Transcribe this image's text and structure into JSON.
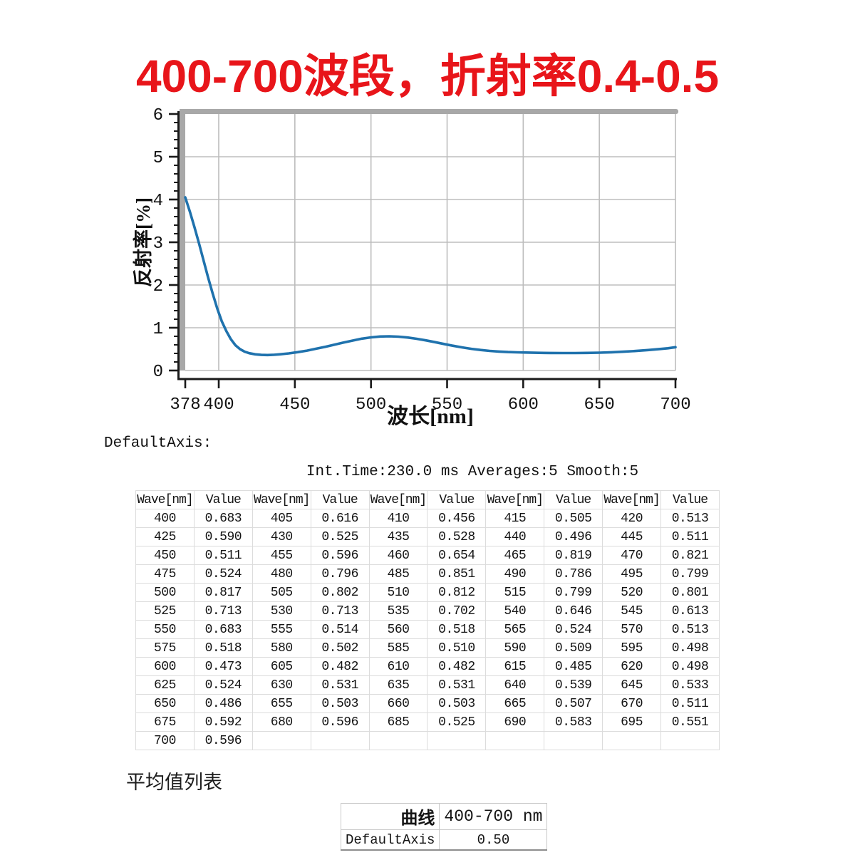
{
  "title": "400-700波段，折射率0.4-0.5",
  "default_axis_label": "DefaultAxis:",
  "info_line": "Int.Time:230.0 ms Averages:5 Smooth:5",
  "colors": {
    "title_red": "#e8151a",
    "curve_blue": "#1f72ad",
    "grid_gray": "#bdbdbd",
    "wall_gray": "#a8a8a8",
    "axis_black": "#1a1a1a"
  },
  "chart_data": {
    "type": "line",
    "title": "",
    "xlabel": "波长[nm]",
    "ylabel": "反射率[%]",
    "xlim": [
      378,
      700
    ],
    "ylim": [
      0,
      6
    ],
    "x_ticks": [
      378,
      400,
      450,
      500,
      550,
      600,
      650,
      700
    ],
    "y_ticks": [
      0,
      1,
      2,
      3,
      4,
      5,
      6
    ],
    "y_minor_step": 0.2,
    "grid": true,
    "legend_position": "none",
    "series": [
      {
        "name": "DefaultAxis",
        "color": "#1f72ad",
        "points": [
          [
            378,
            4.05
          ],
          [
            381,
            3.72
          ],
          [
            384,
            3.36
          ],
          [
            387,
            2.98
          ],
          [
            390,
            2.58
          ],
          [
            393,
            2.18
          ],
          [
            396,
            1.8
          ],
          [
            399,
            1.45
          ],
          [
            402,
            1.15
          ],
          [
            405,
            0.92
          ],
          [
            408,
            0.73
          ],
          [
            411,
            0.59
          ],
          [
            414,
            0.5
          ],
          [
            417,
            0.44
          ],
          [
            420,
            0.405
          ],
          [
            424,
            0.378
          ],
          [
            428,
            0.365
          ],
          [
            432,
            0.362
          ],
          [
            436,
            0.366
          ],
          [
            440,
            0.378
          ],
          [
            446,
            0.4
          ],
          [
            452,
            0.43
          ],
          [
            458,
            0.465
          ],
          [
            464,
            0.51
          ],
          [
            470,
            0.555
          ],
          [
            476,
            0.605
          ],
          [
            482,
            0.655
          ],
          [
            488,
            0.7
          ],
          [
            494,
            0.745
          ],
          [
            500,
            0.775
          ],
          [
            506,
            0.795
          ],
          [
            512,
            0.8
          ],
          [
            518,
            0.792
          ],
          [
            524,
            0.772
          ],
          [
            530,
            0.742
          ],
          [
            536,
            0.705
          ],
          [
            542,
            0.663
          ],
          [
            548,
            0.62
          ],
          [
            554,
            0.578
          ],
          [
            560,
            0.54
          ],
          [
            566,
            0.507
          ],
          [
            572,
            0.48
          ],
          [
            578,
            0.458
          ],
          [
            584,
            0.443
          ],
          [
            590,
            0.432
          ],
          [
            596,
            0.425
          ],
          [
            602,
            0.42
          ],
          [
            610,
            0.414
          ],
          [
            618,
            0.41
          ],
          [
            626,
            0.408
          ],
          [
            634,
            0.408
          ],
          [
            642,
            0.411
          ],
          [
            650,
            0.417
          ],
          [
            658,
            0.427
          ],
          [
            666,
            0.44
          ],
          [
            674,
            0.457
          ],
          [
            682,
            0.478
          ],
          [
            690,
            0.503
          ],
          [
            695,
            0.52
          ],
          [
            700,
            0.545
          ]
        ]
      }
    ]
  },
  "table": {
    "headers": [
      "Wave[nm]",
      "Value",
      "Wave[nm]",
      "Value",
      "Wave[nm]",
      "Value",
      "Wave[nm]",
      "Value",
      "Wave[nm]",
      "Value"
    ],
    "rows": [
      [
        "400",
        "0.683",
        "405",
        "0.616",
        "410",
        "0.456",
        "415",
        "0.505",
        "420",
        "0.513"
      ],
      [
        "425",
        "0.590",
        "430",
        "0.525",
        "435",
        "0.528",
        "440",
        "0.496",
        "445",
        "0.511"
      ],
      [
        "450",
        "0.511",
        "455",
        "0.596",
        "460",
        "0.654",
        "465",
        "0.819",
        "470",
        "0.821"
      ],
      [
        "475",
        "0.524",
        "480",
        "0.796",
        "485",
        "0.851",
        "490",
        "0.786",
        "495",
        "0.799"
      ],
      [
        "500",
        "0.817",
        "505",
        "0.802",
        "510",
        "0.812",
        "515",
        "0.799",
        "520",
        "0.801"
      ],
      [
        "525",
        "0.713",
        "530",
        "0.713",
        "535",
        "0.702",
        "540",
        "0.646",
        "545",
        "0.613"
      ],
      [
        "550",
        "0.683",
        "555",
        "0.514",
        "560",
        "0.518",
        "565",
        "0.524",
        "570",
        "0.513"
      ],
      [
        "575",
        "0.518",
        "580",
        "0.502",
        "585",
        "0.510",
        "590",
        "0.509",
        "595",
        "0.498"
      ],
      [
        "600",
        "0.473",
        "605",
        "0.482",
        "610",
        "0.482",
        "615",
        "0.485",
        "620",
        "0.498"
      ],
      [
        "625",
        "0.524",
        "630",
        "0.531",
        "635",
        "0.531",
        "640",
        "0.539",
        "645",
        "0.533"
      ],
      [
        "650",
        "0.486",
        "655",
        "0.503",
        "660",
        "0.503",
        "665",
        "0.507",
        "670",
        "0.511"
      ],
      [
        "675",
        "0.592",
        "680",
        "0.596",
        "685",
        "0.525",
        "690",
        "0.583",
        "695",
        "0.551"
      ],
      [
        "700",
        "0.596",
        "",
        "",
        "",
        "",
        "",
        "",
        "",
        ""
      ]
    ]
  },
  "average_section": {
    "heading": "平均值列表",
    "rows": [
      [
        "曲线",
        "400-700 nm"
      ],
      [
        "DefaultAxis",
        "0.50"
      ]
    ]
  }
}
